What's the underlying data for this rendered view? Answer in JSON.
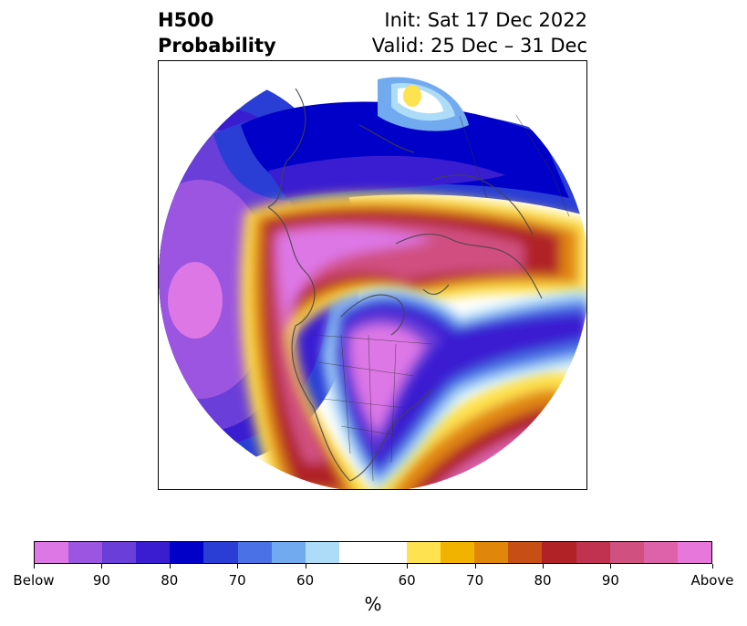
{
  "title": {
    "line1": "H500",
    "line2": "Probability",
    "init": "Init: Sat 17 Dec 2022",
    "valid": "Valid: 25 Dec – 31 Dec"
  },
  "colorbar": {
    "unit": "%",
    "colors": [
      "#dd77e6",
      "#9b55e0",
      "#6a3ed8",
      "#3a1dd1",
      "#0000c8",
      "#2a3ed6",
      "#4a72e6",
      "#72aaf0",
      "#addcf8",
      "#ffffff",
      "#fee24f",
      "#f2b300",
      "#e0860a",
      "#c74f16",
      "#b02225",
      "#c03250",
      "#d05080",
      "#dd62aa",
      "#e877dc"
    ],
    "tick_labels": [
      "Below",
      "90",
      "80",
      "70",
      "60",
      "60",
      "70",
      "80",
      "90",
      "Above"
    ]
  },
  "map": {
    "projection": "polar-circular",
    "field": "500 hPa height anomaly probability"
  }
}
